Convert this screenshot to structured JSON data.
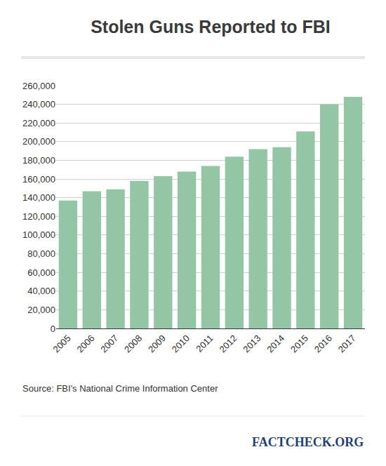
{
  "chart_data": {
    "type": "bar",
    "title": "Stolen Guns Reported to FBI",
    "categories": [
      "2005",
      "2006",
      "2007",
      "2008",
      "2009",
      "2010",
      "2011",
      "2012",
      "2013",
      "2014",
      "2015",
      "2016",
      "2017"
    ],
    "values": [
      137000,
      147000,
      149000,
      158000,
      163000,
      168000,
      174000,
      184000,
      192000,
      194000,
      211000,
      240000,
      248000
    ],
    "color": "#93c6a4",
    "ylim": [
      0,
      260000
    ],
    "yticks": [
      0,
      {
        "value": 20000,
        "label": "20,000"
      },
      {
        "value": 40000,
        "label": "40,000"
      },
      {
        "value": 60000,
        "label": "60,000"
      },
      {
        "value": 80000,
        "label": "80,000"
      },
      {
        "value": 100000,
        "label": "100,000"
      },
      {
        "value": 120000,
        "label": "120,000"
      },
      {
        "value": 140000,
        "label": "140,000"
      },
      {
        "value": 160000,
        "label": "160,000"
      },
      {
        "value": 180000,
        "label": "180,000"
      },
      {
        "value": 200000,
        "label": "200,000"
      },
      {
        "value": 220000,
        "label": "220,000"
      },
      {
        "value": 240000,
        "label": "240,000"
      },
      {
        "value": 260000,
        "label": "260,000"
      }
    ],
    "grid": true,
    "annotations": [
      "Source: FBI's National Crime Information Center",
      "FACTCHECK.ORG"
    ]
  }
}
